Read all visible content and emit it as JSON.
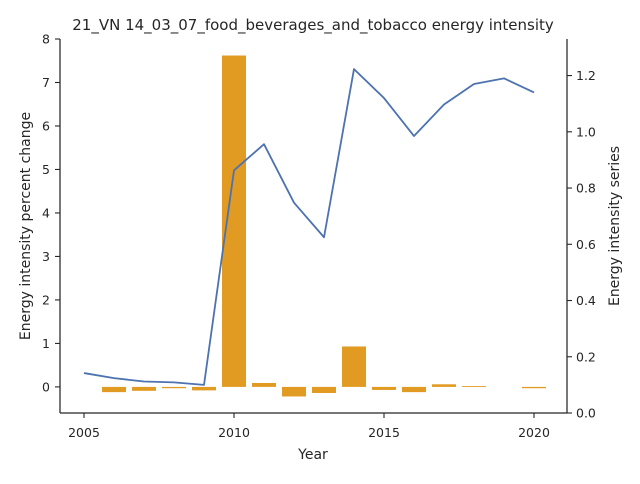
{
  "chart_data": {
    "type": "bar",
    "title": "21_VN 14_03_07_food_beverages_and_tobacco energy intensity",
    "xlabel": "Year",
    "ylabel": "Energy intensity percent change",
    "y2label": "Energy intensity series",
    "xlim": [
      2004.2,
      2021.1
    ],
    "ylim": [
      -0.6,
      8.0
    ],
    "y2lim": [
      0.0,
      1.33
    ],
    "xticks": [
      "2005",
      "2010",
      "2015",
      "2020"
    ],
    "yticks": [
      "0",
      "1",
      "2",
      "3",
      "4",
      "5",
      "6",
      "7",
      "8"
    ],
    "y2ticks": [
      "0.0",
      "0.2",
      "0.4",
      "0.6",
      "0.8",
      "1.0",
      "1.2"
    ],
    "grid": false,
    "x": [
      2005,
      2006,
      2007,
      2008,
      2009,
      2010,
      2011,
      2012,
      2013,
      2014,
      2015,
      2016,
      2017,
      2018,
      2019,
      2020
    ],
    "series": [
      {
        "kind": "bar",
        "axis": "left",
        "color": "#e19b22",
        "values": [
          null,
          -0.12,
          -0.09,
          -0.03,
          -0.08,
          7.62,
          0.09,
          -0.22,
          -0.14,
          0.93,
          -0.07,
          -0.12,
          0.06,
          0.02,
          null,
          -0.03
        ]
      },
      {
        "kind": "line",
        "axis": "right",
        "color": "#4c72b0",
        "values": [
          0.142,
          0.124,
          0.112,
          0.109,
          0.1,
          0.863,
          0.956,
          0.748,
          0.625,
          1.223,
          1.12,
          0.985,
          1.097,
          1.17,
          1.19,
          1.14
        ]
      }
    ]
  }
}
